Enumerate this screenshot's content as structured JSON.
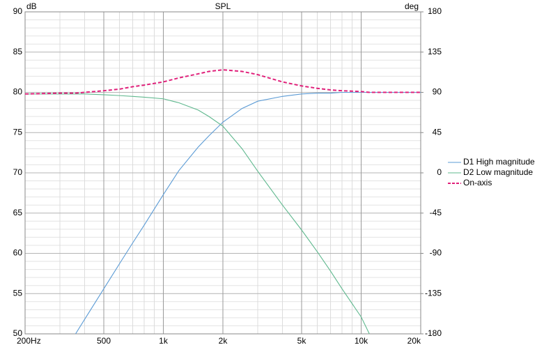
{
  "chart_data": {
    "type": "line",
    "title": "SPL",
    "y_label": "dB",
    "y2_label": "deg",
    "x_scale": "log",
    "x": [
      200,
      300,
      360,
      400,
      500,
      600,
      700,
      800,
      1000,
      1200,
      1500,
      1700,
      2000,
      2500,
      3000,
      4000,
      5000,
      6000,
      7000,
      8000,
      10000,
      11000,
      15000,
      20000
    ],
    "series": [
      {
        "name": "D1 High magnitude",
        "color": "#5b9bd5",
        "dash": false,
        "values": [
          null,
          null,
          50,
          51.8,
          55.6,
          58.7,
          61.3,
          63.5,
          67.3,
          70.3,
          73.2,
          74.6,
          76.3,
          78.0,
          78.9,
          79.5,
          79.8,
          79.9,
          79.9,
          80,
          80,
          80,
          80,
          80
        ]
      },
      {
        "name": "D2 Low magnitude",
        "color": "#5fb88e",
        "dash": false,
        "values": [
          79.8,
          79.8,
          79.8,
          79.8,
          79.7,
          79.6,
          79.5,
          79.4,
          79.2,
          78.7,
          77.8,
          77.0,
          75.8,
          73.0,
          70.2,
          66.0,
          62.9,
          60.2,
          57.8,
          55.6,
          52.1,
          50,
          null,
          null
        ]
      },
      {
        "name": "On-axis",
        "color": "#e0207a",
        "dash": true,
        "values": [
          79.8,
          79.9,
          79.9,
          80.0,
          80.2,
          80.4,
          80.7,
          80.9,
          81.3,
          81.8,
          82.3,
          82.6,
          82.8,
          82.6,
          82.2,
          81.3,
          80.8,
          80.5,
          80.3,
          80.2,
          80.1,
          80.0,
          80.0,
          80.0
        ]
      }
    ],
    "xlim": [
      200,
      20000
    ],
    "xticks": [
      {
        "value": 200,
        "label": "200Hz"
      },
      500,
      {
        "value": 1000,
        "label": "1k"
      },
      {
        "value": 2000,
        "label": "2k"
      },
      {
        "value": 5000,
        "label": "5k"
      },
      {
        "value": 10000,
        "label": "10k"
      },
      {
        "value": 20000,
        "label": "20k"
      }
    ],
    "x_minor_grid": [
      300,
      400,
      600,
      700,
      800,
      900,
      3000,
      4000,
      6000,
      7000,
      8000,
      9000
    ],
    "ylim": [
      50,
      90
    ],
    "yticks": [
      50,
      55,
      60,
      65,
      70,
      75,
      80,
      85,
      90
    ],
    "y_minor_grid": [
      51,
      52,
      53,
      54,
      56,
      57,
      58,
      59,
      61,
      62,
      63,
      64,
      66,
      67,
      68,
      69,
      71,
      72,
      73,
      74,
      76,
      77,
      78,
      79,
      81,
      82,
      83,
      84,
      86,
      87,
      88,
      89
    ],
    "y2lim": [
      -180,
      180
    ],
    "y2ticks": [
      -180,
      -135,
      -90,
      -45,
      0,
      45,
      90,
      135,
      180
    ],
    "grid": true,
    "legend": "right"
  }
}
